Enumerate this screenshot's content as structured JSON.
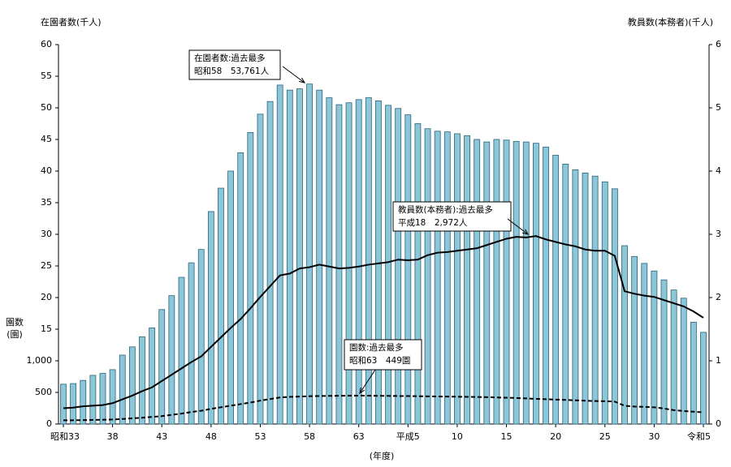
{
  "chart_data": {
    "type": "bar-line",
    "y_label": "在園者数(千人)",
    "y2_label": "教員数(本務者)(千人)",
    "y3_label": [
      "園数",
      "(園)"
    ],
    "x_label": "(年度)",
    "categories": [
      "昭和33",
      null,
      null,
      null,
      null,
      "38",
      null,
      null,
      null,
      null,
      "43",
      null,
      null,
      null,
      null,
      "48",
      null,
      null,
      null,
      null,
      "53",
      null,
      null,
      null,
      null,
      "58",
      null,
      null,
      null,
      null,
      "63",
      null,
      null,
      null,
      null,
      "平成5",
      null,
      null,
      null,
      null,
      "10",
      null,
      null,
      null,
      null,
      "15",
      null,
      null,
      null,
      null,
      "20",
      null,
      null,
      null,
      null,
      "25",
      null,
      null,
      null,
      null,
      "30",
      null,
      null,
      null,
      null,
      "令和5"
    ],
    "series": [
      {
        "name": "在園者数",
        "kind": "bar",
        "axis": "y",
        "color": "#8cc6d8",
        "edge": "#2a6478",
        "values": [
          6.3,
          6.4,
          6.9,
          7.7,
          8.0,
          8.6,
          10.9,
          12.2,
          13.8,
          15.2,
          18.1,
          20.3,
          23.2,
          25.5,
          27.6,
          33.6,
          37.3,
          40.0,
          42.9,
          46.1,
          49.0,
          51.0,
          53.6,
          52.8,
          53.0,
          53.761,
          52.8,
          51.6,
          50.5,
          50.8,
          51.3,
          51.6,
          51.1,
          50.4,
          49.9,
          48.9,
          47.5,
          46.7,
          46.3,
          46.2,
          45.9,
          45.6,
          45.0,
          44.6,
          45.0,
          44.9,
          44.7,
          44.6,
          44.4,
          43.8,
          42.5,
          41.1,
          40.2,
          39.7,
          39.2,
          38.3,
          37.2,
          28.2,
          26.5,
          25.4,
          24.2,
          22.8,
          21.2,
          19.9,
          16.1,
          14.5
        ]
      },
      {
        "name": "教員数",
        "kind": "line",
        "axis": "y2",
        "color": "#000000",
        "dash": false,
        "values": [
          0.25,
          0.26,
          0.28,
          0.29,
          0.3,
          0.33,
          0.39,
          0.45,
          0.52,
          0.58,
          0.68,
          0.78,
          0.88,
          0.98,
          1.07,
          1.22,
          1.37,
          1.52,
          1.66,
          1.83,
          2.01,
          2.18,
          2.35,
          2.38,
          2.46,
          2.48,
          2.52,
          2.49,
          2.46,
          2.47,
          2.49,
          2.52,
          2.54,
          2.56,
          2.6,
          2.59,
          2.6,
          2.67,
          2.71,
          2.72,
          2.74,
          2.76,
          2.78,
          2.83,
          2.88,
          2.93,
          2.96,
          2.95,
          2.972,
          2.92,
          2.88,
          2.84,
          2.81,
          2.76,
          2.74,
          2.74,
          2.66,
          2.1,
          2.06,
          2.03,
          2.01,
          1.96,
          1.91,
          1.86,
          1.78,
          1.68
        ]
      },
      {
        "name": "園数",
        "kind": "line",
        "axis": "y3",
        "color": "#000000",
        "dash": true,
        "values": [
          60,
          60,
          62,
          65,
          68,
          72,
          80,
          90,
          100,
          112,
          125,
          145,
          165,
          190,
          210,
          240,
          265,
          290,
          315,
          340,
          370,
          395,
          420,
          430,
          435,
          440,
          443,
          445,
          447,
          448,
          449,
          448,
          446,
          445,
          443,
          442,
          440,
          438,
          436,
          434,
          432,
          430,
          428,
          425,
          420,
          416,
          412,
          405,
          398,
          392,
          387,
          381,
          375,
          369,
          364,
          360,
          355,
          289,
          276,
          272,
          265,
          245,
          220,
          205,
          195,
          185
        ]
      }
    ],
    "ylim": [
      0,
      60
    ],
    "yticks": [
      15,
      20,
      25,
      30,
      35,
      40,
      45,
      50,
      55,
      60
    ],
    "y3lim": [
      0,
      6000
    ],
    "y3ticks": [
      0,
      500,
      {
        "value": 1000,
        "label": "1,000"
      }
    ],
    "y2lim": [
      0,
      6
    ],
    "y2ticks": [
      0,
      1,
      2,
      3,
      4,
      5,
      6
    ],
    "annotations": [
      {
        "text": [
          "在園者数:過去最多",
          "昭和58　53,761人"
        ]
      },
      {
        "text": [
          "教員数(本務者):過去最多",
          "平成18　2,972人"
        ]
      },
      {
        "text": [
          "園数:過去最多",
          "昭和63　449園"
        ]
      }
    ]
  }
}
